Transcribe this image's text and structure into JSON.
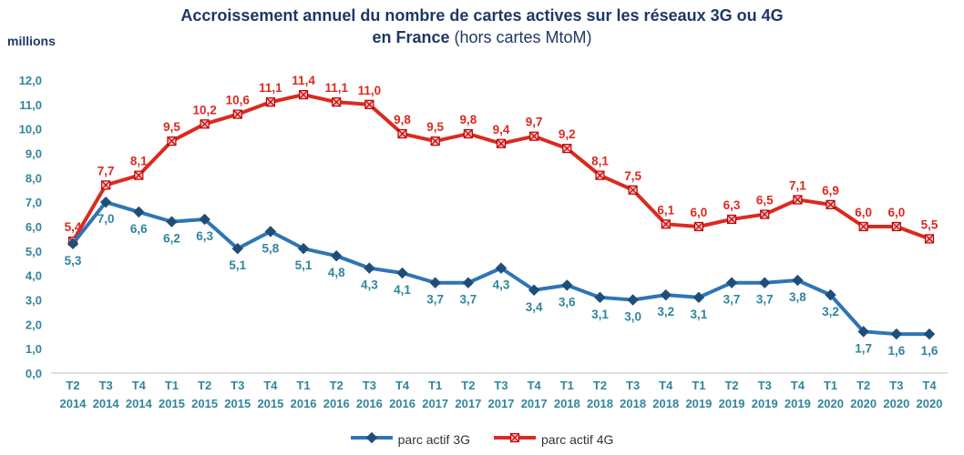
{
  "chart_data": {
    "type": "line",
    "title": "Accroissement annuel du nombre de cartes actives sur les réseaux 3G ou 4G",
    "subtitle_bold": "en France",
    "subtitle_rest": " (hors cartes MtoM)",
    "unit_label": "millions",
    "title_color": "#1F3864",
    "axis_label_color": "#31859C",
    "ylim": [
      0,
      12
    ],
    "ytick_step": 1,
    "grid": false,
    "legend_position": "bottom",
    "categories": [
      {
        "q": "T2",
        "year": "2014"
      },
      {
        "q": "T3",
        "year": "2014"
      },
      {
        "q": "T4",
        "year": "2014"
      },
      {
        "q": "T1",
        "year": "2015"
      },
      {
        "q": "T2",
        "year": "2015"
      },
      {
        "q": "T3",
        "year": "2015"
      },
      {
        "q": "T4",
        "year": "2015"
      },
      {
        "q": "T1",
        "year": "2016"
      },
      {
        "q": "T2",
        "year": "2016"
      },
      {
        "q": "T3",
        "year": "2016"
      },
      {
        "q": "T4",
        "year": "2016"
      },
      {
        "q": "T1",
        "year": "2017"
      },
      {
        "q": "T2",
        "year": "2017"
      },
      {
        "q": "T3",
        "year": "2017"
      },
      {
        "q": "T4",
        "year": "2017"
      },
      {
        "q": "T1",
        "year": "2018"
      },
      {
        "q": "T2",
        "year": "2018"
      },
      {
        "q": "T3",
        "year": "2018"
      },
      {
        "q": "T4",
        "year": "2018"
      },
      {
        "q": "T1",
        "year": "2019"
      },
      {
        "q": "T2",
        "year": "2019"
      },
      {
        "q": "T3",
        "year": "2019"
      },
      {
        "q": "T4",
        "year": "2019"
      },
      {
        "q": "T1",
        "year": "2020"
      },
      {
        "q": "T2",
        "year": "2020"
      },
      {
        "q": "T3",
        "year": "2020"
      },
      {
        "q": "T4",
        "year": "2020"
      }
    ],
    "series": [
      {
        "id": "3g",
        "name": "parc actif 3G",
        "color": "#2E75B6",
        "marker": "diamond",
        "marker_fill": "#1F4E79",
        "marker_stroke": "#1F4E79",
        "label_color": "#31859C",
        "label_position": "below",
        "values": [
          5.3,
          7.0,
          6.6,
          6.2,
          6.3,
          5.1,
          5.8,
          5.1,
          4.8,
          4.3,
          4.1,
          3.7,
          3.7,
          4.3,
          3.4,
          3.6,
          3.1,
          3.0,
          3.2,
          3.1,
          3.7,
          3.7,
          3.8,
          3.2,
          1.7,
          1.6,
          1.6
        ]
      },
      {
        "id": "4g",
        "name": "parc actif 4G",
        "color": "#DA2A20",
        "marker": "square-x",
        "marker_fill": "#F6BDBD",
        "marker_stroke": "#C00000",
        "label_color": "#DA2A20",
        "label_position": "above",
        "values": [
          5.4,
          7.7,
          8.1,
          9.5,
          10.2,
          10.6,
          11.1,
          11.4,
          11.1,
          11.0,
          9.8,
          9.5,
          9.8,
          9.4,
          9.7,
          9.2,
          8.1,
          7.5,
          6.1,
          6.0,
          6.3,
          6.5,
          7.1,
          6.9,
          6.0,
          6.0,
          5.5
        ]
      }
    ]
  }
}
